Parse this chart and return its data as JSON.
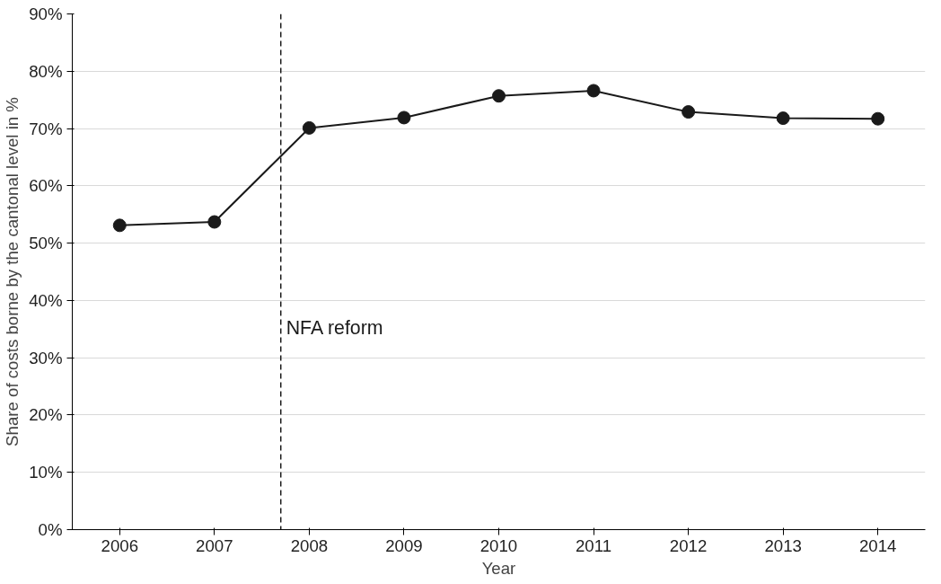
{
  "chart_data": {
    "type": "line",
    "xlabel": "Year",
    "ylabel": "Share of costs borne by the cantonal level in %",
    "x": [
      2006,
      2007,
      2008,
      2009,
      2010,
      2011,
      2012,
      2013,
      2014
    ],
    "series": [
      {
        "color": "#1a1a1a",
        "values": [
          53.1,
          53.7,
          70.1,
          71.9,
          75.7,
          76.6,
          72.9,
          71.8,
          71.7
        ]
      }
    ],
    "xlim": [
      2005.5,
      2014.5
    ],
    "xticks": [
      2006,
      2007,
      2008,
      2009,
      2010,
      2011,
      2012,
      2013,
      2014
    ],
    "ylim": [
      0,
      90
    ],
    "yticks": [
      {
        "value": 0,
        "label": "0%"
      },
      {
        "value": 10,
        "label": "10%"
      },
      {
        "value": 20,
        "label": "20%"
      },
      {
        "value": 30,
        "label": "30%"
      },
      {
        "value": 40,
        "label": "40%"
      },
      {
        "value": 50,
        "label": "50%"
      },
      {
        "value": 60,
        "label": "60%"
      },
      {
        "value": 70,
        "label": "70%"
      },
      {
        "value": 80,
        "label": "80%"
      },
      {
        "value": 90,
        "label": "90%"
      }
    ],
    "ref_lines": [
      {
        "axis": "x",
        "value": 2007.7,
        "label": "NFA reform",
        "color": "#1a1a1a",
        "line_style": "dashed"
      }
    ],
    "grid": "y",
    "marker": "circle",
    "line_style": "solid"
  }
}
